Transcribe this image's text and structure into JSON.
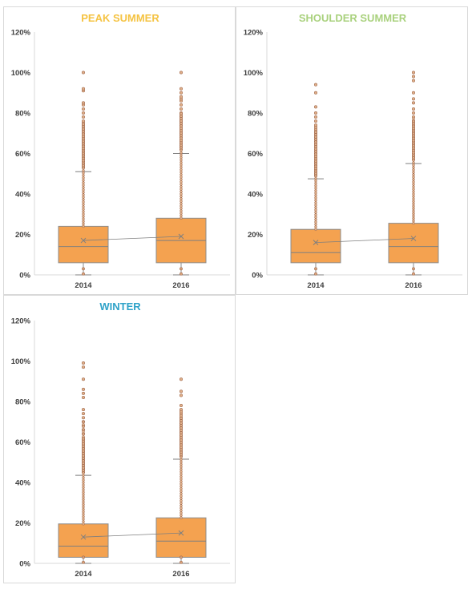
{
  "chart_data": [
    {
      "type": "box",
      "title": "PEAK SUMMER",
      "title_color": "#F5C342",
      "categories": [
        "2014",
        "2016"
      ],
      "ylim": [
        0,
        1.2
      ],
      "yticks": [
        "0%",
        "20%",
        "40%",
        "60%",
        "80%",
        "100%",
        "120%"
      ],
      "box_color": "#F4A250",
      "boxes": [
        {
          "q1": 0.06,
          "median": 0.14,
          "q3": 0.24,
          "mean": 0.17,
          "whisker_low": 0.0,
          "whisker_high": 0.51,
          "outliers": [
            0.53,
            0.54,
            0.55,
            0.56,
            0.57,
            0.58,
            0.59,
            0.6,
            0.61,
            0.62,
            0.63,
            0.64,
            0.65,
            0.66,
            0.67,
            0.68,
            0.69,
            0.7,
            0.71,
            0.72,
            0.73,
            0.74,
            0.75,
            0.76,
            0.78,
            0.8,
            0.82,
            0.84,
            0.85,
            0.91,
            0.92,
            1.0
          ]
        },
        {
          "q1": 0.06,
          "median": 0.17,
          "q3": 0.28,
          "mean": 0.19,
          "whisker_low": 0.0,
          "whisker_high": 0.6,
          "outliers": [
            0.62,
            0.63,
            0.64,
            0.65,
            0.66,
            0.67,
            0.68,
            0.69,
            0.7,
            0.71,
            0.72,
            0.73,
            0.74,
            0.75,
            0.76,
            0.77,
            0.78,
            0.79,
            0.8,
            0.82,
            0.84,
            0.86,
            0.87,
            0.88,
            0.9,
            0.92,
            1.0
          ]
        }
      ]
    },
    {
      "type": "box",
      "title": "SHOULDER SUMMER",
      "title_color": "#A9D17D",
      "categories": [
        "2014",
        "2016"
      ],
      "ylim": [
        0,
        1.2
      ],
      "yticks": [
        "0%",
        "20%",
        "40%",
        "60%",
        "80%",
        "100%",
        "120%"
      ],
      "box_color": "#F4A250",
      "boxes": [
        {
          "q1": 0.06,
          "median": 0.11,
          "q3": 0.225,
          "mean": 0.16,
          "whisker_low": 0.0,
          "whisker_high": 0.475,
          "outliers": [
            0.49,
            0.5,
            0.51,
            0.52,
            0.53,
            0.54,
            0.55,
            0.56,
            0.57,
            0.58,
            0.59,
            0.6,
            0.61,
            0.62,
            0.63,
            0.64,
            0.65,
            0.66,
            0.67,
            0.68,
            0.69,
            0.7,
            0.71,
            0.72,
            0.73,
            0.74,
            0.76,
            0.78,
            0.8,
            0.83,
            0.9,
            0.94
          ]
        },
        {
          "q1": 0.06,
          "median": 0.14,
          "q3": 0.255,
          "mean": 0.18,
          "whisker_low": 0.0,
          "whisker_high": 0.55,
          "outliers": [
            0.57,
            0.58,
            0.59,
            0.6,
            0.61,
            0.62,
            0.63,
            0.64,
            0.65,
            0.66,
            0.67,
            0.68,
            0.69,
            0.7,
            0.71,
            0.72,
            0.73,
            0.74,
            0.75,
            0.76,
            0.78,
            0.8,
            0.82,
            0.85,
            0.87,
            0.9,
            0.96,
            0.98,
            1.0
          ]
        }
      ]
    },
    {
      "type": "box",
      "title": "WINTER",
      "title_color": "#2EA2C8",
      "categories": [
        "2014",
        "2016"
      ],
      "ylim": [
        0,
        1.2
      ],
      "yticks": [
        "0%",
        "20%",
        "40%",
        "60%",
        "80%",
        "100%",
        "120%"
      ],
      "box_color": "#F4A250",
      "boxes": [
        {
          "q1": 0.03,
          "median": 0.085,
          "q3": 0.195,
          "mean": 0.13,
          "whisker_low": 0.0,
          "whisker_high": 0.435,
          "outliers": [
            0.45,
            0.46,
            0.47,
            0.48,
            0.49,
            0.5,
            0.51,
            0.52,
            0.53,
            0.54,
            0.55,
            0.56,
            0.57,
            0.58,
            0.59,
            0.6,
            0.61,
            0.62,
            0.64,
            0.66,
            0.68,
            0.7,
            0.72,
            0.74,
            0.76,
            0.82,
            0.84,
            0.86,
            0.91,
            0.97,
            0.99
          ]
        },
        {
          "q1": 0.03,
          "median": 0.11,
          "q3": 0.225,
          "mean": 0.15,
          "whisker_low": 0.0,
          "whisker_high": 0.515,
          "outliers": [
            0.53,
            0.54,
            0.55,
            0.56,
            0.57,
            0.58,
            0.59,
            0.6,
            0.61,
            0.62,
            0.63,
            0.64,
            0.65,
            0.66,
            0.67,
            0.68,
            0.69,
            0.7,
            0.71,
            0.72,
            0.73,
            0.74,
            0.75,
            0.76,
            0.78,
            0.83,
            0.85,
            0.91
          ]
        }
      ]
    }
  ]
}
